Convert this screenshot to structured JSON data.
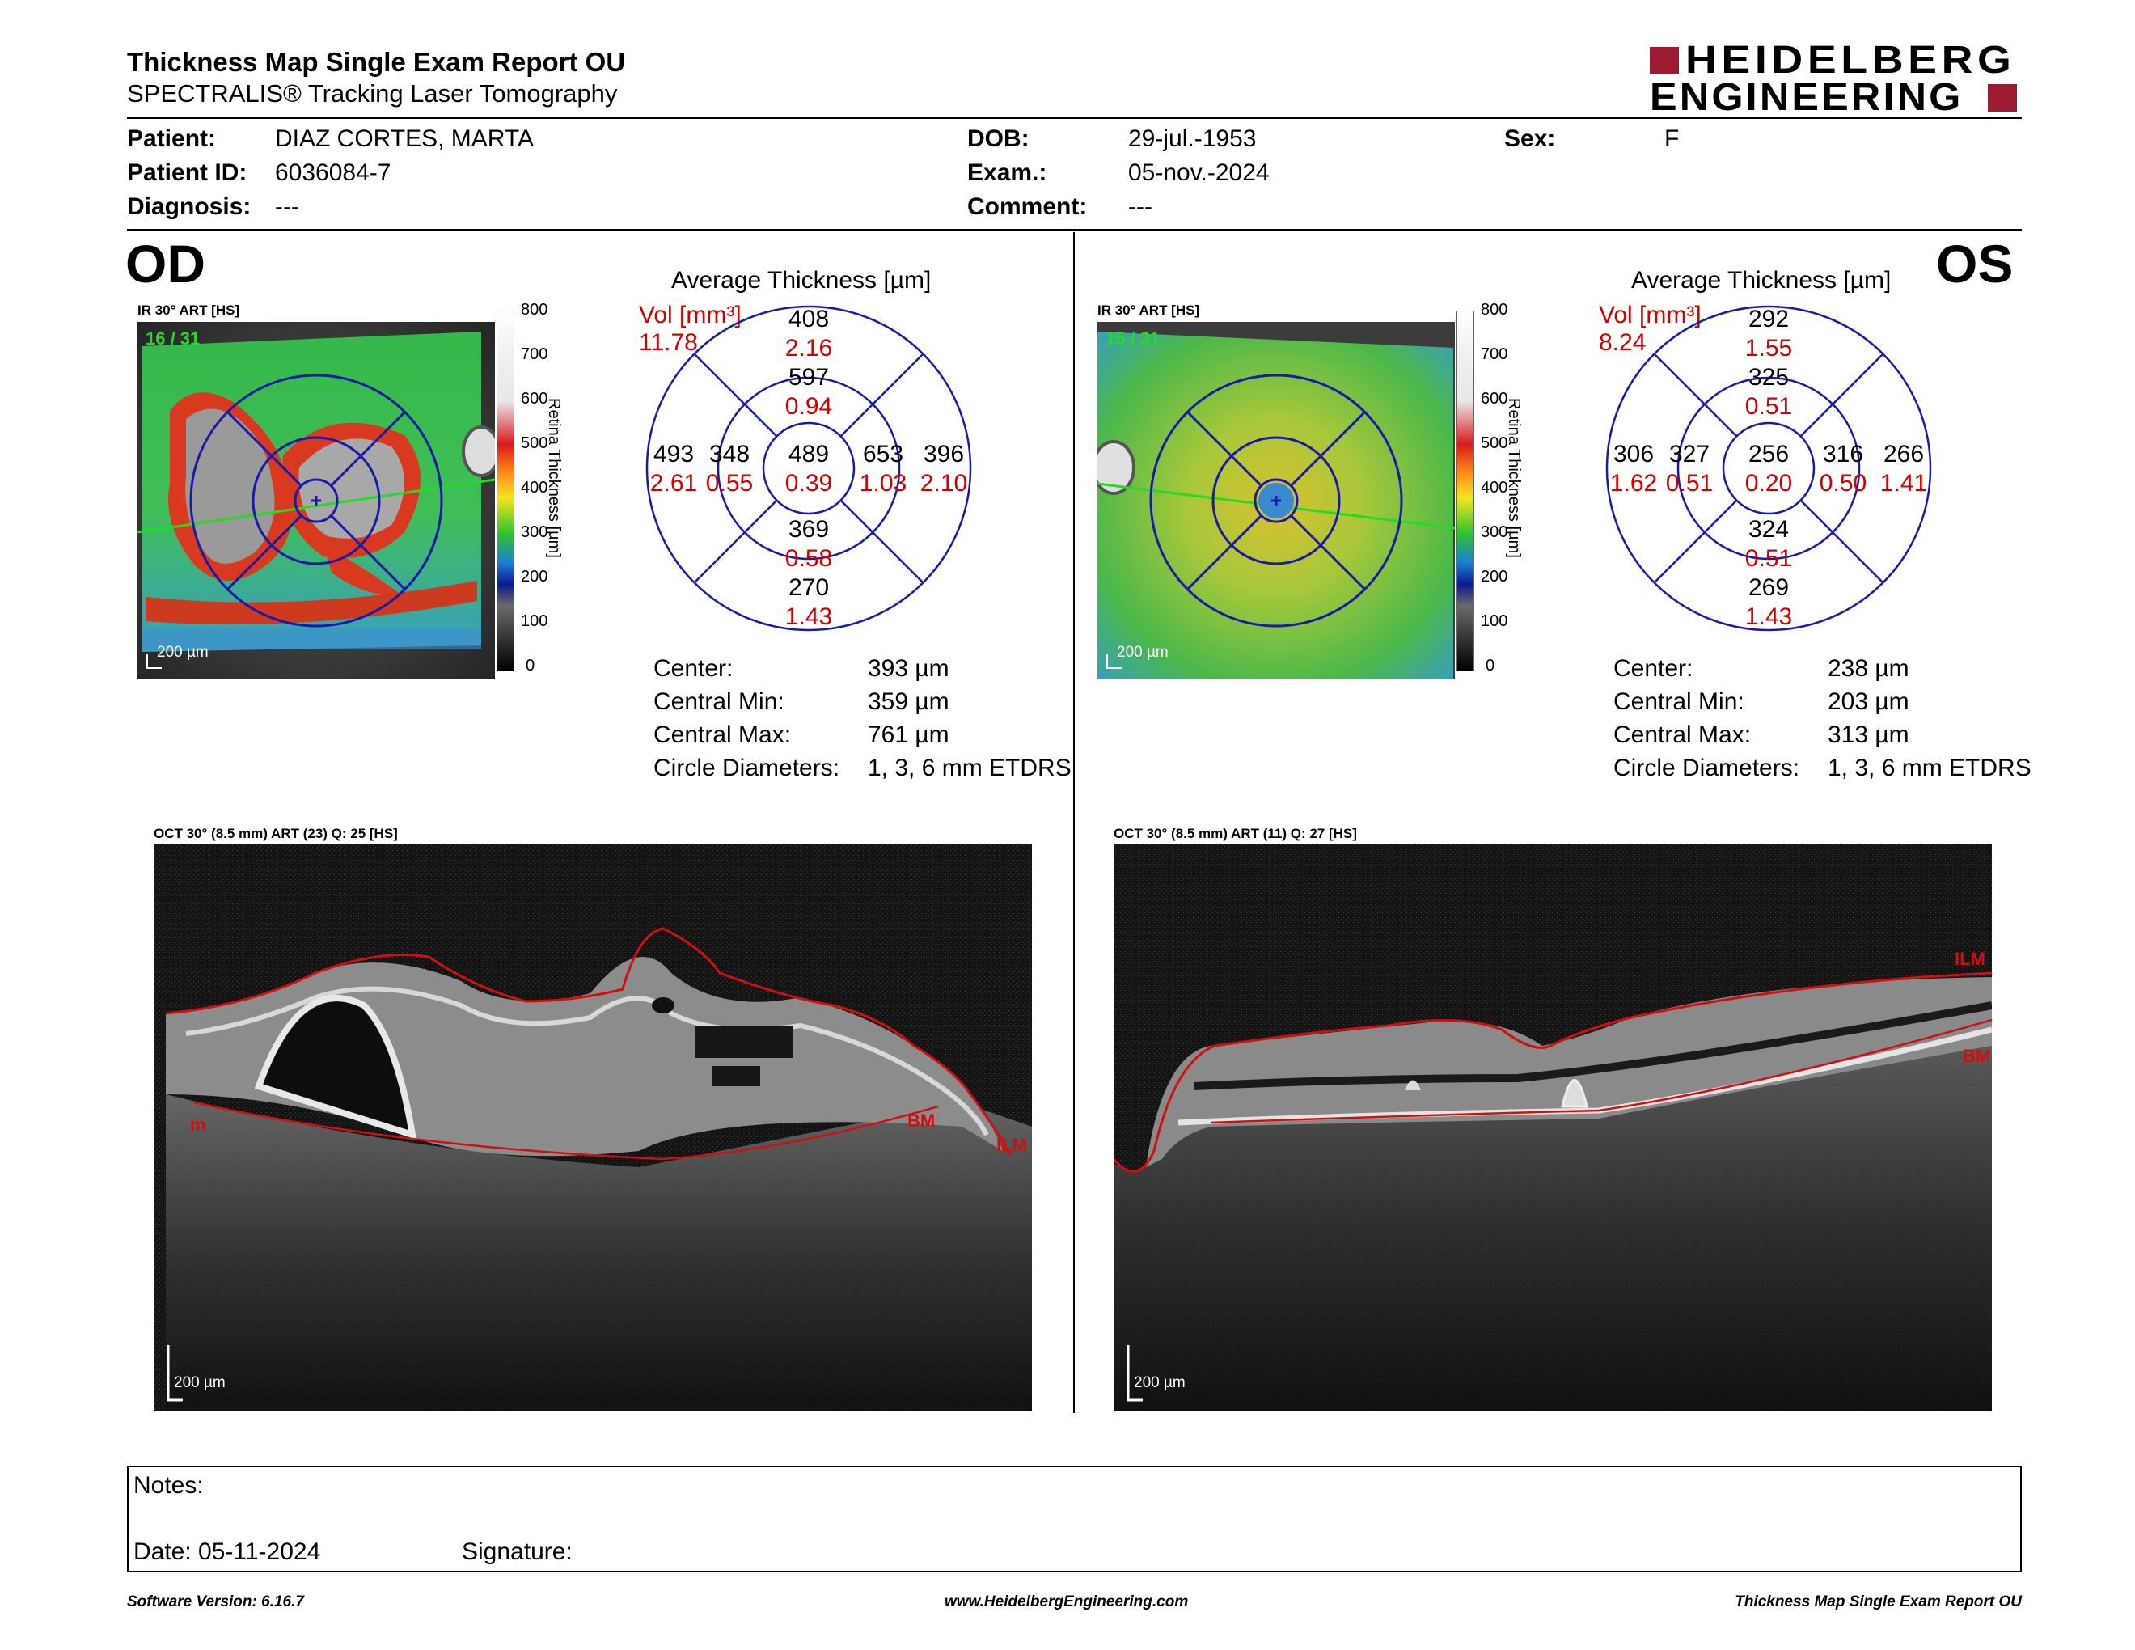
{
  "header": {
    "title": "Thickness Map Single Exam Report OU",
    "subtitle": "SPECTRALIS® Tracking Laser Tomography",
    "logo_line1": "HEIDELBERG",
    "logo_line2": "ENGINEERING",
    "brand_color": "#9b1b30"
  },
  "patient": {
    "patient_label": "Patient:",
    "patient_value": "DIAZ CORTES, MARTA",
    "id_label": "Patient ID:",
    "id_value": "6036084-7",
    "diagnosis_label": "Diagnosis:",
    "diagnosis_value": "---",
    "dob_label": "DOB:",
    "dob_value": "29-jul.-1953",
    "exam_label": "Exam.:",
    "exam_value": "05-nov.-2024",
    "comment_label": "Comment:",
    "comment_value": "---",
    "sex_label": "Sex:",
    "sex_value": "F"
  },
  "od": {
    "eye_label": "OD",
    "ir_label": "IR 30° ART [HS]",
    "frame_label": "16 / 31",
    "scale_label": "200 µm",
    "colorbar_ticks": [
      "800",
      "700",
      "600",
      "500",
      "400",
      "300",
      "200",
      "100",
      "0"
    ],
    "colorbar_title": "Retina Thickness [µm]",
    "avg_title": "Average Thickness [µm]",
    "vol_label": "Vol [mm³]",
    "vol_value": "11.78",
    "grid": {
      "center": {
        "thickness": "489",
        "volume": "0.39"
      },
      "inner_top": {
        "thickness": "597",
        "volume": "0.94"
      },
      "inner_bottom": {
        "thickness": "369",
        "volume": "0.58"
      },
      "inner_left": {
        "thickness": "348",
        "volume": "0.55"
      },
      "inner_right": {
        "thickness": "653",
        "volume": "1.03"
      },
      "outer_top": {
        "thickness": "408",
        "volume": "2.16"
      },
      "outer_bottom": {
        "thickness": "270",
        "volume": "1.43"
      },
      "outer_left": {
        "thickness": "493",
        "volume": "2.61"
      },
      "outer_right": {
        "thickness": "396",
        "volume": "2.10"
      }
    },
    "stats": {
      "center_label": "Center:",
      "center_value": "393 µm",
      "min_label": "Central Min:",
      "min_value": "359 µm",
      "max_label": "Central Max:",
      "max_value": "761 µm",
      "diam_label": "Circle Diameters:",
      "diam_value": "1, 3, 6 mm ETDRS"
    },
    "oct_label": "OCT 30° (8.5 mm) ART (23) Q: 25 [HS]",
    "oct_scale": "200 µm",
    "layer_labels": [
      "ILM",
      "BM",
      "m"
    ]
  },
  "os": {
    "eye_label": "OS",
    "ir_label": "IR 30° ART [HS]",
    "frame_label": "15 / 31",
    "scale_label": "200 µm",
    "colorbar_ticks": [
      "800",
      "700",
      "600",
      "500",
      "400",
      "300",
      "200",
      "100",
      "0"
    ],
    "colorbar_title": "Retina Thickness [µm]",
    "avg_title": "Average Thickness [µm]",
    "vol_label": "Vol [mm³]",
    "vol_value": "8.24",
    "grid": {
      "center": {
        "thickness": "256",
        "volume": "0.20"
      },
      "inner_top": {
        "thickness": "325",
        "volume": "0.51"
      },
      "inner_bottom": {
        "thickness": "324",
        "volume": "0.51"
      },
      "inner_left": {
        "thickness": "327",
        "volume": "0.51"
      },
      "inner_right": {
        "thickness": "316",
        "volume": "0.50"
      },
      "outer_top": {
        "thickness": "292",
        "volume": "1.55"
      },
      "outer_bottom": {
        "thickness": "269",
        "volume": "1.43"
      },
      "outer_left": {
        "thickness": "306",
        "volume": "1.62"
      },
      "outer_right": {
        "thickness": "266",
        "volume": "1.41"
      }
    },
    "stats": {
      "center_label": "Center:",
      "center_value": "238 µm",
      "min_label": "Central Min:",
      "min_value": "203 µm",
      "max_label": "Central Max:",
      "max_value": "313 µm",
      "diam_label": "Circle Diameters:",
      "diam_value": "1, 3, 6 mm ETDRS"
    },
    "oct_label": "OCT 30° (8.5 mm) ART (11) Q: 27 [HS]",
    "oct_scale": "200 µm",
    "layer_labels": [
      "ILM",
      "BM"
    ]
  },
  "notes": {
    "notes_label": "Notes:",
    "date_label": "Date: 05-11-2024",
    "signature_label": "Signature:"
  },
  "footer": {
    "software": "Software Version: 6.16.7",
    "website": "www.HeidelbergEngineering.com",
    "report_name": "Thickness Map Single Exam Report OU"
  },
  "colors": {
    "grid_blue": "#1a1aa8",
    "volume_red": "#d40000",
    "frame_green": "#22dd22"
  }
}
